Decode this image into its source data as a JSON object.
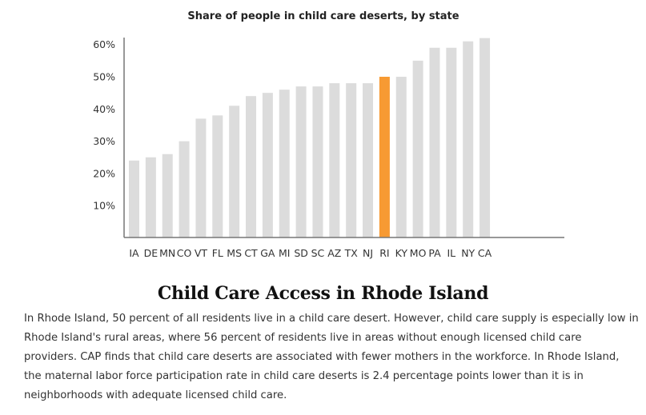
{
  "chart_data": {
    "type": "bar",
    "title": "Share of people in child care deserts, by state",
    "categories": [
      "IA",
      "DE",
      "MN",
      "CO",
      "VT",
      "FL",
      "MS",
      "CT",
      "GA",
      "MI",
      "SD",
      "SC",
      "AZ",
      "TX",
      "NJ",
      "RI",
      "KY",
      "MO",
      "PA",
      "IL",
      "NY",
      "CA"
    ],
    "values": [
      24,
      25,
      26,
      30,
      37,
      38,
      41,
      44,
      45,
      46,
      47,
      47,
      48,
      48,
      48,
      50,
      50,
      55,
      59,
      59,
      61,
      62
    ],
    "highlight": "RI",
    "ylim": [
      0,
      62
    ],
    "yticks": [
      10,
      20,
      30,
      40,
      50,
      60
    ],
    "ytick_labels": [
      "10%",
      "20%",
      "30%",
      "40%",
      "50%",
      "60%"
    ],
    "xlabel": "",
    "ylabel": "",
    "grid": false,
    "colors": {
      "bar": "#dcdcdc",
      "highlight": "#f79a33",
      "axis": "#777777"
    }
  },
  "article": {
    "heading": "Child Care Access in Rhode Island",
    "lines": [
      "In Rhode Island, 50 percent of all residents live in a child care desert. However, child care supply is especially low in",
      "Rhode Island's rural areas, where 56 percent of residents live in areas without enough licensed child care",
      "providers. CAP finds that child care deserts are associated with fewer mothers in the workforce. In Rhode Island,",
      "the maternal labor force participation rate in child care deserts is 2.4 percentage points lower than it is in",
      "neighborhoods with adequate licensed child care."
    ]
  }
}
